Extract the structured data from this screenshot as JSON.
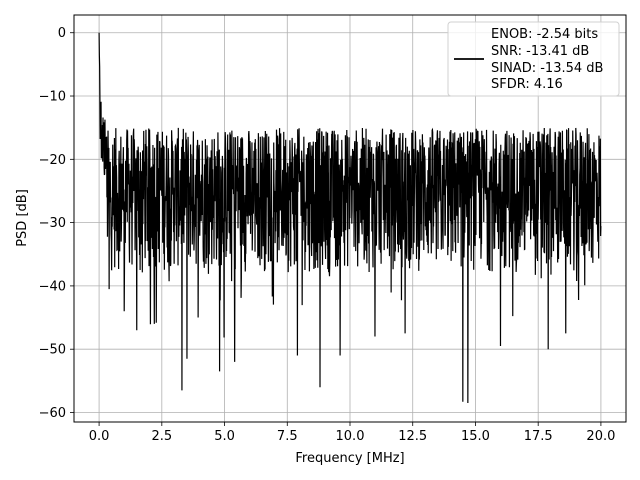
{
  "chart_data": {
    "type": "line",
    "title": "",
    "xlabel": "Frequency [MHz]",
    "ylabel": "PSD [dB]",
    "xlim": [
      -1.0,
      21.0
    ],
    "ylim": [
      -61.5,
      2.8
    ],
    "grid": true,
    "legend_position": "top-right",
    "x_ticks": [
      0.0,
      2.5,
      5.0,
      7.5,
      10.0,
      12.5,
      15.0,
      17.5,
      20.0
    ],
    "x_tick_labels": [
      "0.0",
      "2.5",
      "5.0",
      "7.5",
      "10.0",
      "12.5",
      "15.0",
      "17.5",
      "20.0"
    ],
    "y_ticks": [
      0,
      -10,
      -20,
      -30,
      -40,
      -50,
      -60
    ],
    "y_tick_labels": [
      "0",
      "−10",
      "−20",
      "−30",
      "−40",
      "−50",
      "−60"
    ],
    "legend_lines": [
      "ENOB: -2.54 bits",
      "SNR: -13.41 dB",
      "SINAD: -13.54 dB",
      "SFDR: 4.16"
    ],
    "series": [
      {
        "color": "#000000",
        "x_range": [
          0.0,
          20.0
        ],
        "n_points": 1800,
        "peak": {
          "x": 0.0,
          "y": 0.0
        },
        "initial_decay": [
          [
            0.0,
            0.0
          ],
          [
            0.03,
            -5.0
          ],
          [
            0.08,
            -9.0
          ],
          [
            0.15,
            -11.0
          ],
          [
            0.3,
            -13.5
          ]
        ],
        "noise_band_top_approx": -15,
        "noise_band_bottom_approx": -38,
        "noise_center_approx": -26,
        "dips": [
          {
            "x": 3.3,
            "y": -56.5
          },
          {
            "x": 3.5,
            "y": -51.5
          },
          {
            "x": 4.8,
            "y": -53.5
          },
          {
            "x": 5.4,
            "y": -52.0
          },
          {
            "x": 7.9,
            "y": -51.0
          },
          {
            "x": 8.8,
            "y": -56.0
          },
          {
            "x": 9.6,
            "y": -51.0
          },
          {
            "x": 14.5,
            "y": -58.3
          },
          {
            "x": 14.7,
            "y": -58.5
          },
          {
            "x": 17.9,
            "y": -50.0
          },
          {
            "x": 0.4,
            "y": -40.5
          },
          {
            "x": 1.0,
            "y": -44.0
          },
          {
            "x": 1.5,
            "y": -47.0
          },
          {
            "x": 2.2,
            "y": -46.0
          },
          {
            "x": 11.0,
            "y": -48.0
          },
          {
            "x": 12.2,
            "y": -47.5
          },
          {
            "x": 16.0,
            "y": -49.5
          },
          {
            "x": 18.6,
            "y": -47.5
          }
        ]
      }
    ]
  }
}
